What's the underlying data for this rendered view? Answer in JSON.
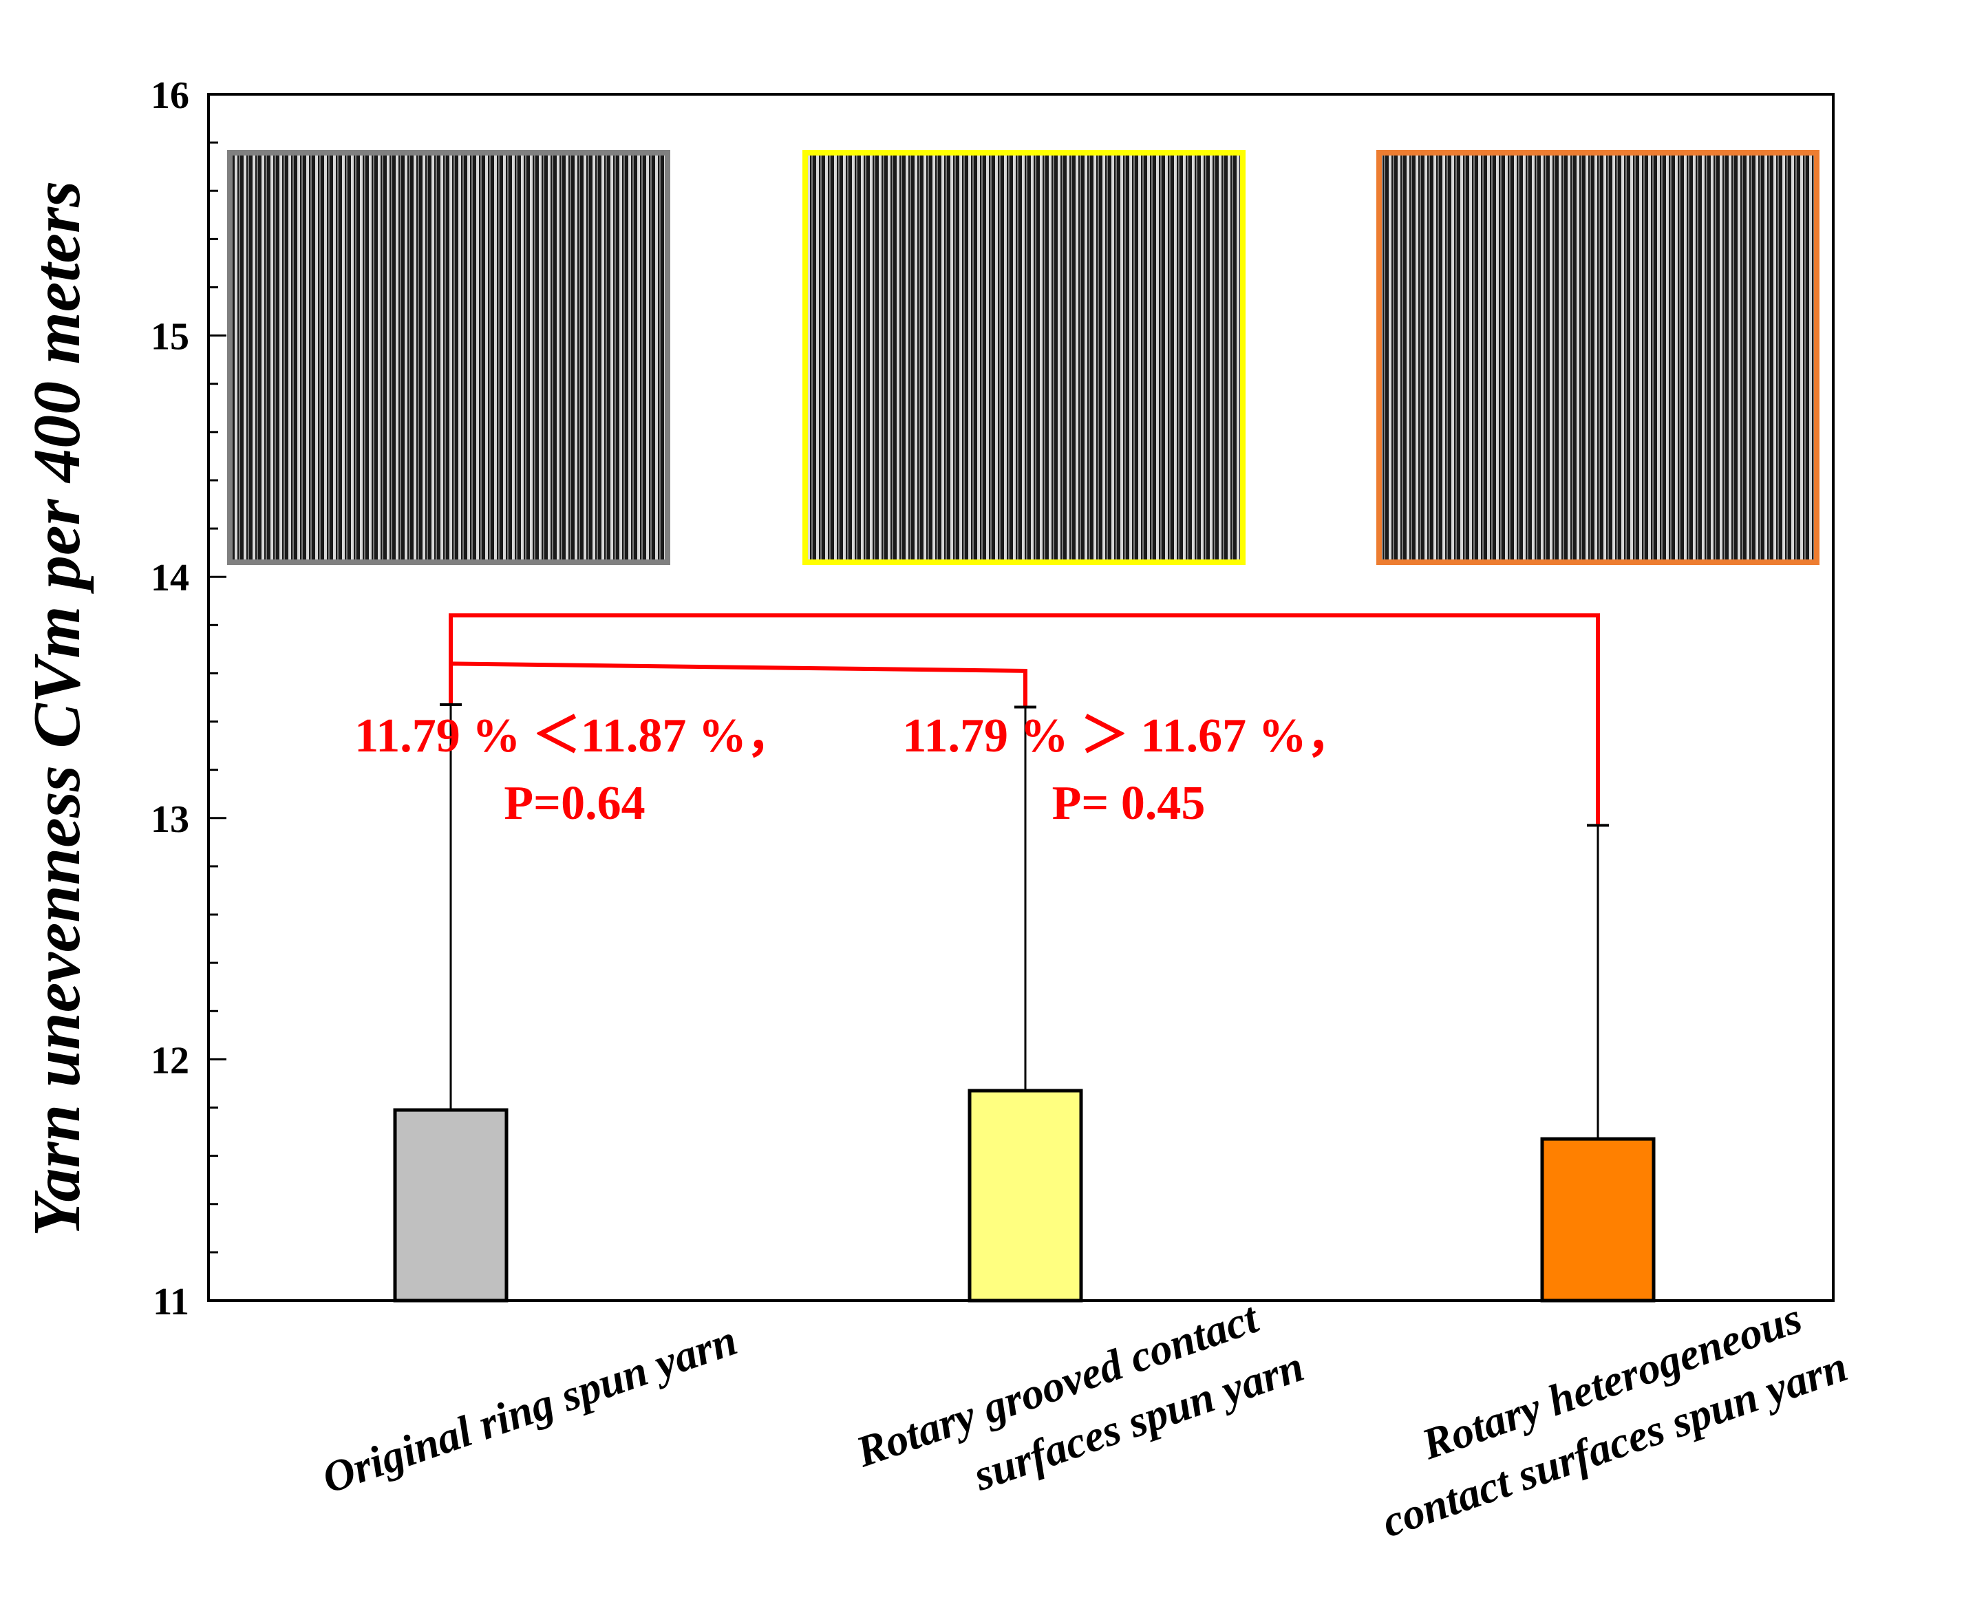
{
  "chart_data": {
    "type": "bar",
    "ylabel": "Yarn unevenness CVm per 400 meters",
    "xlabel": "",
    "title": "",
    "ylim": [
      11,
      16
    ],
    "yticks": [
      11,
      12,
      13,
      14,
      15,
      16
    ],
    "categories": [
      [
        "Original ring spun yarn"
      ],
      [
        "Rotary grooved contact",
        "surfaces spun yarn"
      ],
      [
        "Rotary  heterogeneous",
        "contact surfaces spun yarn"
      ]
    ],
    "values": [
      11.79,
      11.87,
      11.67
    ],
    "error_upper": [
      13.47,
      13.46,
      12.97
    ],
    "colors": [
      "#c0c0c0",
      "#ffff80",
      "#ff8000"
    ],
    "inset_border_colors": [
      "#808080",
      "#ffff00",
      "#ed7d31"
    ],
    "grid": false,
    "legend": "none",
    "comparisons": [
      {
        "between": [
          0,
          1
        ],
        "bracket_y": 13.64,
        "lines": [
          "11.79 % ＜11.87 %，",
          "P=0.64"
        ],
        "color": "#ff0000"
      },
      {
        "between": [
          0,
          2
        ],
        "bracket_y": 13.84,
        "lines": [
          "11.79 % ＞ 11.67 %，",
          "P= 0.45"
        ],
        "color": "#ff0000"
      }
    ]
  }
}
